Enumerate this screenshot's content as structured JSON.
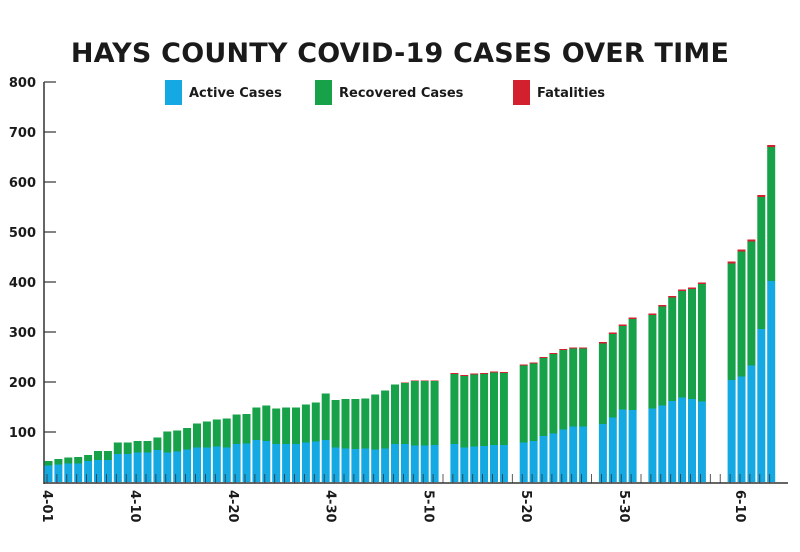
{
  "chart_data": {
    "type": "bar",
    "stacked": true,
    "title": "HAYS COUNTY COVID-19 CASES OVER TIME",
    "xlabel": "",
    "ylabel": "",
    "ylim": [
      0,
      800
    ],
    "yticks": [
      100,
      200,
      300,
      400,
      500,
      600,
      700,
      800
    ],
    "grid": false,
    "legend_position": "top-center",
    "x_start": "4-01",
    "x_end": "6-13",
    "xtick_labels": [
      {
        "label": "4-01",
        "day": 0
      },
      {
        "label": "4-10",
        "day": 9
      },
      {
        "label": "4-20",
        "day": 19
      },
      {
        "label": "4-30",
        "day": 29
      },
      {
        "label": "5-10",
        "day": 39
      },
      {
        "label": "5-20",
        "day": 49
      },
      {
        "label": "5-30",
        "day": 59
      },
      {
        "label": "6-10",
        "day": 70
      }
    ],
    "legend": [
      {
        "name": "Active Cases",
        "color": "#15a9e4"
      },
      {
        "name": "Recovered Cases",
        "color": "#17a24a"
      },
      {
        "name": "Fatalities",
        "color": "#d2202f"
      }
    ],
    "categories": [
      "4-01",
      "4-02",
      "4-03",
      "4-04",
      "4-05",
      "4-06",
      "4-07",
      "4-08",
      "4-09",
      "4-10",
      "4-11",
      "4-12",
      "4-13",
      "4-14",
      "4-15",
      "4-16",
      "4-17",
      "4-18",
      "4-19",
      "4-20",
      "4-21",
      "4-22",
      "4-23",
      "4-24",
      "4-25",
      "4-26",
      "4-27",
      "4-28",
      "4-29",
      "4-30",
      "5-01",
      "5-02",
      "5-03",
      "5-04",
      "5-05",
      "5-06",
      "5-07",
      "5-08",
      "5-09",
      "5-10",
      "5-12",
      "5-13",
      "5-14",
      "5-15",
      "5-16",
      "5-17",
      "5-19",
      "5-20",
      "5-21",
      "5-22",
      "5-23",
      "5-24",
      "5-25",
      "5-27",
      "5-28",
      "5-29",
      "5-30",
      "6-01",
      "6-02",
      "6-03",
      "6-04",
      "6-05",
      "6-06",
      "6-09",
      "6-10",
      "6-11",
      "6-12",
      "6-13"
    ],
    "days": [
      0,
      1,
      2,
      3,
      4,
      5,
      6,
      7,
      8,
      9,
      10,
      11,
      12,
      13,
      14,
      15,
      16,
      17,
      18,
      19,
      20,
      21,
      22,
      23,
      24,
      25,
      26,
      27,
      28,
      29,
      30,
      31,
      32,
      33,
      34,
      35,
      36,
      37,
      38,
      39,
      41,
      42,
      43,
      44,
      45,
      46,
      48,
      49,
      50,
      51,
      52,
      53,
      54,
      56,
      57,
      58,
      59,
      61,
      62,
      63,
      64,
      65,
      66,
      69,
      70,
      71,
      72,
      73
    ],
    "series": [
      {
        "name": "Active Cases",
        "values": [
          33,
          35,
          37,
          37,
          42,
          44,
          44,
          56,
          56,
          59,
          59,
          64,
          59,
          61,
          65,
          69,
          69,
          71,
          69,
          76,
          77,
          84,
          82,
          76,
          76,
          76,
          79,
          81,
          84,
          69,
          67,
          66,
          67,
          65,
          67,
          76,
          76,
          73,
          73,
          74,
          76,
          69,
          71,
          72,
          74,
          74,
          79,
          82,
          92,
          97,
          105,
          111,
          111,
          116,
          129,
          145,
          144,
          147,
          153,
          162,
          169,
          166,
          161,
          204,
          211,
          233,
          306,
          402
        ]
      },
      {
        "name": "Recovered Cases",
        "values": [
          9,
          11,
          12,
          13,
          12,
          18,
          18,
          23,
          23,
          23,
          23,
          25,
          42,
          42,
          43,
          48,
          52,
          54,
          58,
          59,
          59,
          65,
          71,
          71,
          73,
          73,
          76,
          78,
          93,
          95,
          99,
          100,
          100,
          110,
          116,
          119,
          122,
          129,
          129,
          128,
          140,
          143,
          144,
          144,
          145,
          144,
          154,
          155,
          156,
          159,
          159,
          156,
          156,
          161,
          167,
          167,
          182,
          187,
          198,
          207,
          213,
          220,
          235,
          233,
          250,
          248,
          264,
          268
        ]
      },
      {
        "name": "Fatalities",
        "values": [
          0,
          0,
          0,
          0,
          0,
          0,
          0,
          0,
          0,
          0,
          0,
          0,
          0,
          0,
          0,
          0,
          0,
          0,
          0,
          0,
          0,
          0,
          0,
          0,
          0,
          0,
          0,
          0,
          0,
          0,
          0,
          0,
          0,
          0,
          0,
          0,
          1,
          1,
          1,
          1,
          2,
          2,
          2,
          2,
          2,
          2,
          2,
          2,
          2,
          2,
          2,
          2,
          2,
          3,
          3,
          3,
          3,
          3,
          3,
          3,
          3,
          3,
          3,
          4,
          4,
          4,
          4,
          4
        ]
      }
    ]
  }
}
